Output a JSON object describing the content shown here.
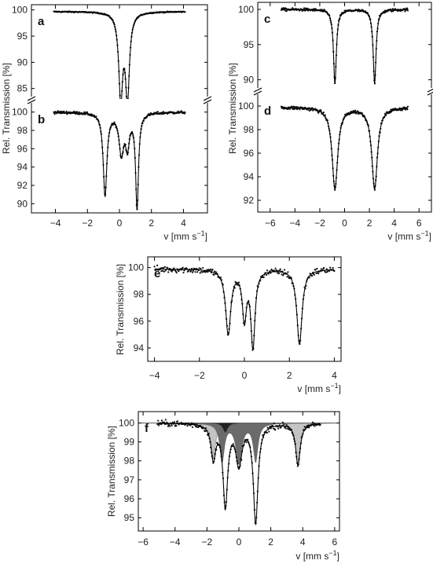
{
  "chart_data": [
    {
      "id": "left-upper",
      "type": "scatter",
      "panels": [
        {
          "letter": "a",
          "ylim": [
            83,
            101
          ],
          "yticks": [
            "85",
            "90",
            "95",
            "100"
          ],
          "baseline": 99.7,
          "noise": 0.1,
          "lines": [
            {
              "center": 0.08,
              "width": 0.3,
              "depth": 16.0
            },
            {
              "center": 0.5,
              "width": 0.3,
              "depth": 16.0
            }
          ],
          "fill_components": []
        },
        {
          "letter": "b",
          "ylim": [
            89,
            101
          ],
          "yticks": [
            "90",
            "92",
            "94",
            "96",
            "98",
            "100"
          ],
          "baseline": 100.0,
          "noise": 0.15,
          "lines": [
            {
              "center": -0.9,
              "width": 0.28,
              "depth": 9.0
            },
            {
              "center": 0.12,
              "width": 0.35,
              "depth": 4.3
            },
            {
              "center": 0.5,
              "width": 0.3,
              "depth": 3.4
            },
            {
              "center": 1.1,
              "width": 0.22,
              "depth": 10.3
            }
          ],
          "fill_components": []
        }
      ],
      "xlim": [
        -5.5,
        5.5
      ],
      "xticks": [
        "-4",
        "-2",
        "0",
        "2",
        "4"
      ],
      "xlabel": "v [mm s",
      "xlabel_sup": "−1",
      "xlabel_end": "]",
      "ylabel": "Rel. Transmission [%]"
    },
    {
      "id": "right-upper",
      "type": "scatter",
      "panels": [
        {
          "letter": "c",
          "ylim": [
            88.5,
            101
          ],
          "yticks": [
            "90",
            "95",
            "100"
          ],
          "baseline": 100.0,
          "noise": 0.2,
          "lines": [
            {
              "center": -0.78,
              "width": 0.28,
              "depth": 10.5
            },
            {
              "center": 2.42,
              "width": 0.28,
              "depth": 10.5
            }
          ],
          "fill_components": []
        },
        {
          "letter": "d",
          "ylim": [
            91,
            101
          ],
          "yticks": [
            "92",
            "94",
            "96",
            "98",
            "100"
          ],
          "baseline": 99.9,
          "noise": 0.15,
          "lines": [
            {
              "center": -0.78,
              "width": 0.55,
              "depth": 6.9
            },
            {
              "center": 2.42,
              "width": 0.55,
              "depth": 6.9
            }
          ],
          "fill_components": []
        }
      ],
      "xlim": [
        -7,
        7
      ],
      "xticks": [
        "-6",
        "-4",
        "-2",
        "0",
        "2",
        "4",
        "6"
      ],
      "xlabel": "v [mm s",
      "xlabel_sup": "−1",
      "xlabel_end": "]",
      "ylabel": "Rel. Transmission [%]"
    },
    {
      "id": "middle",
      "type": "scatter",
      "panels": [
        {
          "letter": "e",
          "ylim": [
            93,
            100.8
          ],
          "yticks": [
            "94",
            "96",
            "98",
            "100"
          ],
          "baseline": 99.9,
          "noise": 0.25,
          "lines": [
            {
              "center": -0.72,
              "width": 0.28,
              "depth": 4.8
            },
            {
              "center": 0.0,
              "width": 0.22,
              "depth": 3.6
            },
            {
              "center": 0.38,
              "width": 0.22,
              "depth": 5.7
            },
            {
              "center": 2.45,
              "width": 0.28,
              "depth": 5.6
            }
          ],
          "fill_components": []
        }
      ],
      "xlim": [
        -4.3,
        4.3
      ],
      "xticks": [
        "-4",
        "-2",
        "0",
        "2",
        "4"
      ],
      "xlabel": "v [mm s",
      "xlabel_sup": "−1",
      "xlabel_end": "]",
      "ylabel": "Rel. Transmission [%]"
    },
    {
      "id": "bottom",
      "type": "scatter",
      "panels": [
        {
          "letter": "f",
          "ylim": [
            94.3,
            100.6
          ],
          "yticks": [
            "95",
            "96",
            "97",
            "98",
            "99",
            "100"
          ],
          "baseline": 100.0,
          "noise": 0.15,
          "lines": [
            {
              "center": -1.6,
              "width": 0.35,
              "depth": 1.8
            },
            {
              "center": -0.85,
              "width": 0.35,
              "depth": 4.3
            },
            {
              "center": 0.0,
              "width": 0.45,
              "depth": 2.1
            },
            {
              "center": 1.05,
              "width": 0.35,
              "depth": 5.2
            },
            {
              "center": 3.7,
              "width": 0.35,
              "depth": 2.2
            }
          ],
          "fill_components": [
            {
              "color": "#c4c4c4",
              "lines": [
                {
                  "center": -1.6,
                  "width": 0.35,
                  "depth": 1.8
                },
                {
                  "center": 3.7,
                  "width": 0.35,
                  "depth": 2.2
                }
              ]
            },
            {
              "color": "#6b6b6b",
              "lines": [
                {
                  "center": -1.05,
                  "width": 0.35,
                  "depth": 2.0
                },
                {
                  "center": 0.0,
                  "width": 0.45,
                  "depth": 2.1
                },
                {
                  "center": 1.05,
                  "width": 0.35,
                  "depth": 2.0
                }
              ]
            },
            {
              "color": "#222222",
              "lines": [
                {
                  "center": -0.85,
                  "width": 0.35,
                  "depth": 0.5
                }
              ]
            }
          ]
        }
      ],
      "xlim": [
        -6.3,
        6.3
      ],
      "xticks": [
        "-6",
        "-4",
        "-2",
        "0",
        "2",
        "4",
        "6"
      ],
      "xlabel": "v [mm s",
      "xlabel_sup": "−1",
      "xlabel_end": "]",
      "ylabel": "Rel. Transmission [%]"
    }
  ]
}
